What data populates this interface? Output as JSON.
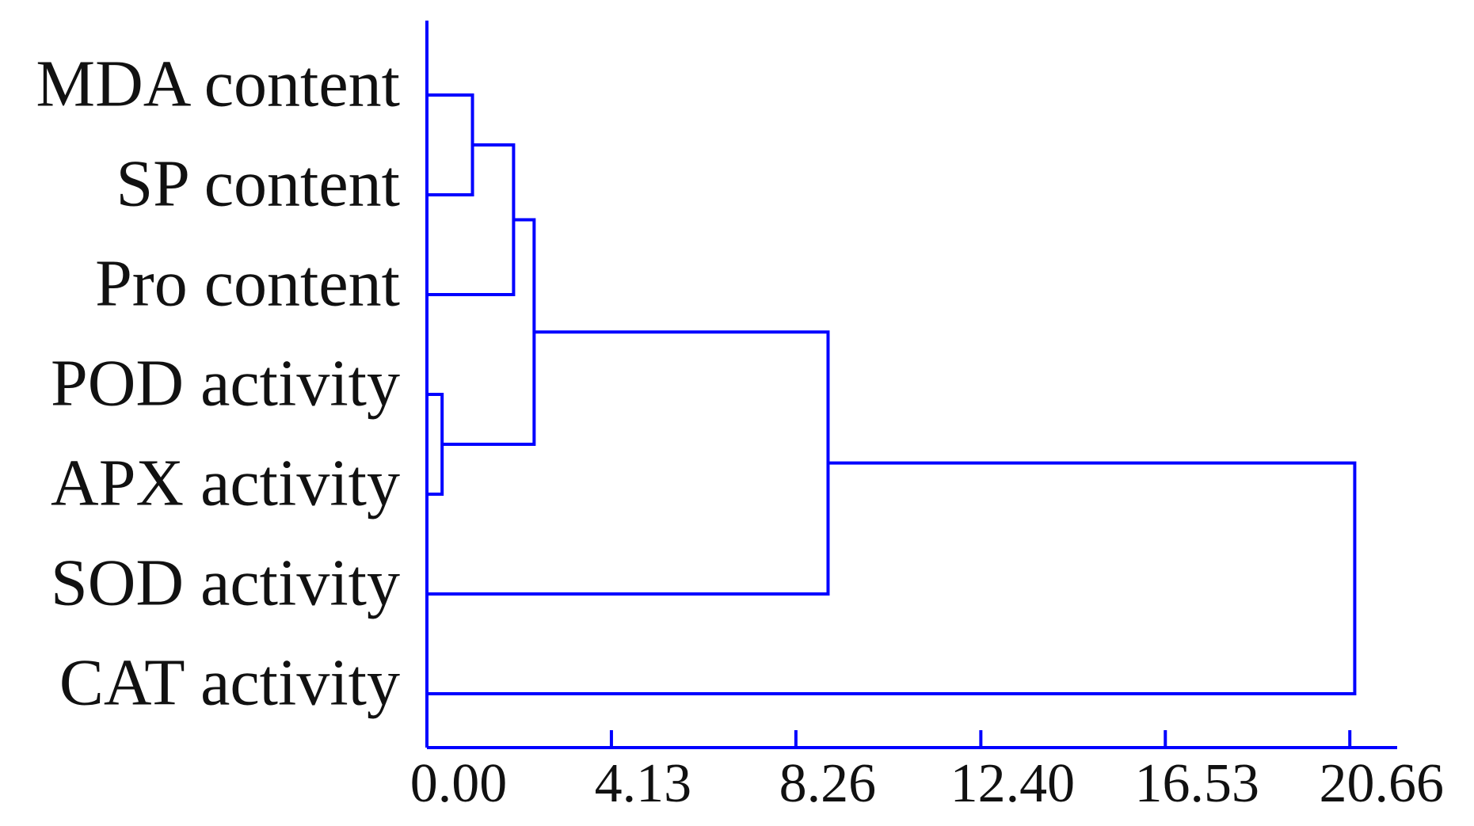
{
  "chart_data": {
    "type": "dendrogram",
    "color": "#0000ff",
    "leaves": [
      "MDA content",
      "SP content",
      "Pro content",
      "POD activity",
      "APX activity",
      "SOD activity",
      "CAT activity"
    ],
    "merges": [
      {
        "left": 0,
        "right": 1,
        "height": 1.02
      },
      {
        "left": 7,
        "right": 2,
        "height": 1.94
      },
      {
        "left": 3,
        "right": 4,
        "height": 0.34
      },
      {
        "left": 8,
        "right": 9,
        "height": 2.4
      },
      {
        "left": 10,
        "right": 5,
        "height": 8.98
      },
      {
        "left": 11,
        "right": 6,
        "height": 20.77
      }
    ],
    "xlim": [
      0,
      21.72
    ],
    "xticks": [
      {
        "value": 0,
        "label": "0.00"
      },
      4.13,
      8.26,
      {
        "value": 12.4,
        "label": "12.40"
      },
      16.53,
      20.66
    ]
  }
}
